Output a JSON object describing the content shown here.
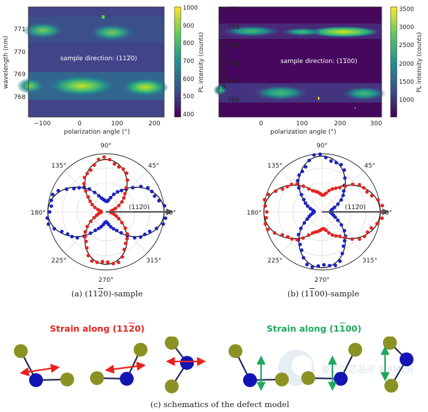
{
  "heatmap_a": {
    "ylabel": "wavelength (nm)",
    "xlabel": "polarization angle (°)",
    "annotation": "sample direction: (11",
    "annotation_bar": "2",
    "annotation_end": "0)",
    "colorbar_label": "PL intensity (counts)",
    "x_ticks": [
      "−100",
      "0",
      "100",
      "200"
    ],
    "y_ticks": [
      "771",
      "770",
      "769",
      "768"
    ],
    "cb_ticks": [
      "1000",
      "900",
      "800",
      "700",
      "600",
      "500",
      "400"
    ]
  },
  "heatmap_b": {
    "ylabel": "wavelength (nm)",
    "xlabel": "polarization angle (°)",
    "annotation": "sample direction: (1",
    "annotation_bar": "1",
    "annotation_end": "00)",
    "colorbar_label": "PL intensity (counts)",
    "x_ticks": [
      "0",
      "100",
      "200",
      "300"
    ],
    "y_ticks": [
      "771",
      "770",
      "769",
      "768",
      "767",
      "766"
    ],
    "cb_ticks": [
      "3500",
      "3000",
      "2500",
      "2000",
      "1500",
      "1000"
    ]
  },
  "polar": {
    "angle_labels": [
      "0°",
      "45°",
      "90°",
      "135°",
      "180°",
      "225°",
      "270°",
      "315°"
    ],
    "arrow_label_a": "(11",
    "arrow_label_a_bar": "2",
    "arrow_label_a_end": "0)",
    "arrow_label_b": "(11",
    "arrow_label_b_bar": "2",
    "arrow_label_b_end": "0)"
  },
  "captions": {
    "a_pre": "(a)  (11",
    "a_bar": "2",
    "a_post": "0)-sample",
    "b_pre": "(b)  (1",
    "b_bar": "1",
    "b_post": "00)-sample",
    "c": "(c)  schematics of the defect model"
  },
  "strain": {
    "a_pre": "Strain along (11",
    "a_bar": "2",
    "a_post": "0)",
    "b_pre": "Strain along (1",
    "b_bar": "1",
    "b_post": "00)"
  },
  "watermark": "厦门中芯晶研 XIAMEN",
  "colors": {
    "red": "#e8231e",
    "blue": "#1b22c4",
    "green": "#1fa85c",
    "olive": "#8b9224",
    "atom_blue": "#1414b4"
  },
  "chart_data": [
    {
      "type": "heatmap",
      "x_range": [
        -140,
        230
      ],
      "y_range": [
        767.2,
        771.5
      ],
      "cbar_range": [
        380,
        1000
      ],
      "colormap": "viridis",
      "bands_nm": [
        770.8,
        768.5
      ]
    },
    {
      "type": "heatmap",
      "x_range": [
        -50,
        320
      ],
      "y_range": [
        765,
        771
      ],
      "cbar_range": [
        700,
        3500
      ],
      "colormap": "viridis",
      "bands_nm": [
        769.6,
        766.3
      ]
    },
    {
      "type": "scatter",
      "projection": "polar",
      "series": [
        {
          "color": "blue",
          "shape": "two-lobe along 0°/180°"
        },
        {
          "color": "red",
          "shape": "two-lobe along 90°/270°"
        }
      ]
    },
    {
      "type": "scatter",
      "projection": "polar",
      "series": [
        {
          "color": "red",
          "shape": "two-lobe along 0°/180°"
        },
        {
          "color": "blue",
          "shape": "two-lobe along 90°/270°"
        }
      ]
    }
  ]
}
